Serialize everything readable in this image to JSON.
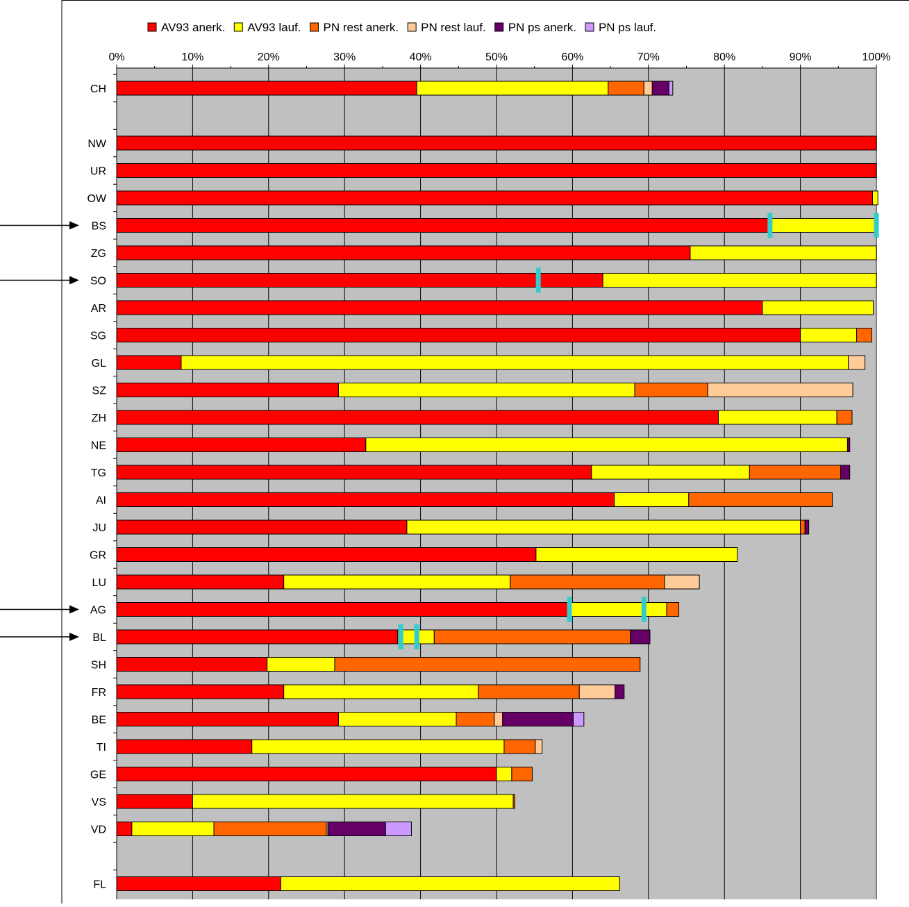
{
  "chart_data": {
    "type": "bar",
    "orientation": "horizontal",
    "stacked": true,
    "xlim": [
      0,
      100
    ],
    "x_unit": "%",
    "x_ticks": [
      "0%",
      "10%",
      "20%",
      "30%",
      "40%",
      "50%",
      "60%",
      "70%",
      "80%",
      "90%",
      "100%"
    ],
    "grid": true,
    "legend_position": "top",
    "categories": [
      "CH",
      "",
      "NW",
      "UR",
      "OW",
      "BS",
      "ZG",
      "SO",
      "AR",
      "SG",
      "GL",
      "SZ",
      "ZH",
      "NE",
      "TG",
      "AI",
      "JU",
      "GR",
      "LU",
      "AG",
      "BL",
      "SH",
      "FR",
      "BE",
      "TI",
      "GE",
      "VS",
      "VD",
      "",
      "FL"
    ],
    "series": [
      {
        "name": "AV93 anerk.",
        "color": "#ff0000",
        "values": [
          39.5,
          null,
          100,
          100,
          99.5,
          86,
          75.5,
          64,
          85,
          90,
          8.5,
          29.2,
          79.2,
          32.8,
          62.5,
          65.5,
          38.2,
          55.2,
          22,
          59.5,
          37,
          19.8,
          22,
          29.2,
          17.8,
          50,
          10,
          2,
          null,
          21.6
        ]
      },
      {
        "name": "AV93 lauf.",
        "color": "#ffff00",
        "values": [
          25.2,
          null,
          0,
          0,
          0.7,
          14,
          24.5,
          36,
          14.6,
          7.4,
          87.8,
          39,
          15.6,
          63.4,
          20.8,
          9.8,
          51.8,
          26.5,
          29.8,
          12.9,
          4.8,
          8.9,
          25.6,
          15.5,
          33.2,
          2,
          42.2,
          10.8,
          null,
          44.6
        ]
      },
      {
        "name": "PN rest anerk.",
        "color": "#ff6600",
        "values": [
          4.7,
          null,
          0,
          0,
          0,
          0,
          0,
          0,
          0,
          2,
          0,
          9.6,
          2,
          0,
          12,
          18.9,
          0.6,
          0,
          20.3,
          1.6,
          25.8,
          40.2,
          13.3,
          5,
          4.1,
          2.7,
          0.2,
          14.8,
          null,
          0
        ]
      },
      {
        "name": "PN rest lauf.",
        "color": "#ffcc99",
        "values": [
          1.1,
          null,
          0,
          0,
          0,
          0,
          0,
          0,
          0,
          0,
          2.2,
          19.1,
          0,
          0,
          0,
          0,
          0,
          0,
          4.6,
          0,
          0,
          0,
          4.7,
          1.1,
          0.9,
          0,
          0,
          0.2,
          null,
          0
        ]
      },
      {
        "name": "PN ps anerk.",
        "color": "#660066",
        "values": [
          2.2,
          null,
          0,
          0,
          0,
          0,
          0,
          0,
          0,
          0,
          0,
          0,
          0,
          0.3,
          1.2,
          0,
          0.5,
          0,
          0,
          0,
          2.6,
          0,
          1.2,
          9.3,
          0,
          0,
          0,
          7.6,
          null,
          0
        ]
      },
      {
        "name": "PN ps lauf.",
        "color": "#cc99ff",
        "values": [
          0.5,
          null,
          0,
          0,
          0,
          0,
          0,
          0,
          0,
          0,
          0,
          0,
          0,
          0,
          0,
          0,
          0,
          0,
          0,
          0,
          0,
          0,
          0,
          1.4,
          0,
          0,
          0,
          3.4,
          null,
          0
        ]
      }
    ],
    "markers": {
      "color": "#33cccc",
      "points": [
        {
          "category": "BS",
          "x": 86
        },
        {
          "category": "BS",
          "x": 100
        },
        {
          "category": "SO",
          "x": 55.5
        },
        {
          "category": "AG",
          "x": 59.6
        },
        {
          "category": "AG",
          "x": 69.4
        },
        {
          "category": "BL",
          "x": 37.4
        },
        {
          "category": "BL",
          "x": 39.5
        }
      ]
    },
    "arrow_categories": [
      "BS",
      "SO",
      "AG",
      "BL"
    ]
  }
}
